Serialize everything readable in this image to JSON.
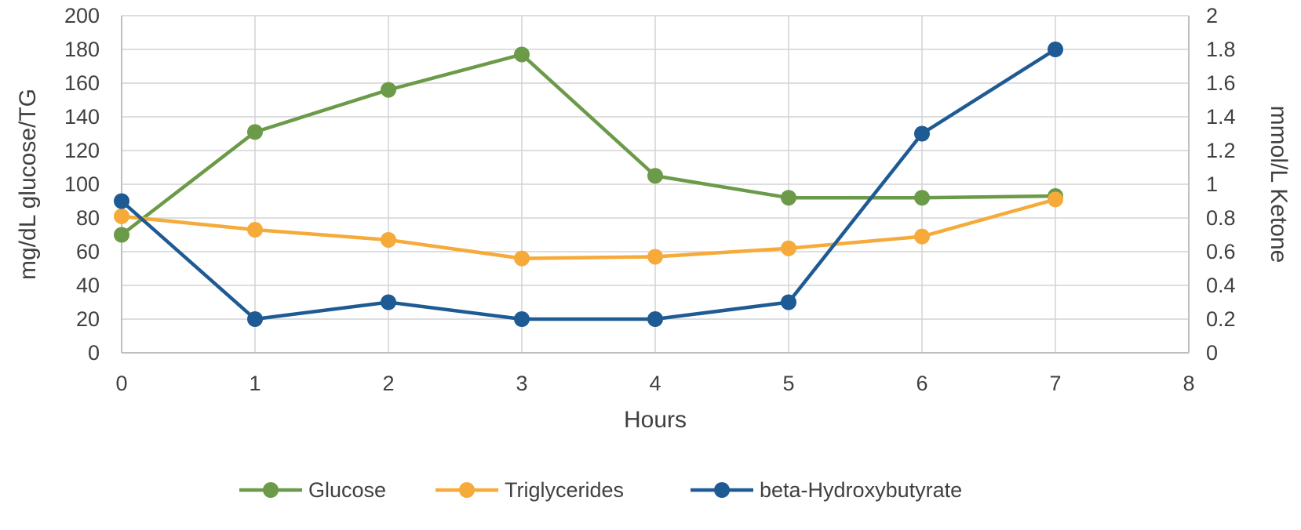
{
  "chart_data": {
    "type": "line",
    "title": "",
    "xlabel": "Hours",
    "ylabel": "mg/dL glucose/TG",
    "y2label": "mmol/L Ketone",
    "xlim": [
      0,
      8
    ],
    "ylim": [
      0,
      200
    ],
    "y2lim": [
      0,
      2
    ],
    "x_ticks": [
      "0",
      "1",
      "2",
      "3",
      "4",
      "5",
      "6",
      "7",
      "8"
    ],
    "y_ticks": [
      "0",
      "20",
      "40",
      "60",
      "80",
      "100",
      "120",
      "140",
      "160",
      "180",
      "200"
    ],
    "y2_ticks": [
      "0",
      "0.2",
      "0.4",
      "0.6",
      "0.8",
      "1",
      "1.2",
      "1.4",
      "1.6",
      "1.8",
      "2"
    ],
    "grid": true,
    "legend_position": "bottom",
    "x": [
      0,
      1,
      2,
      3,
      4,
      5,
      6,
      7
    ],
    "series": [
      {
        "name": "Glucose",
        "axis": "left",
        "color": "#6b9a48",
        "values": [
          70,
          131,
          156,
          177,
          105,
          92,
          92,
          93
        ]
      },
      {
        "name": "Triglycerides",
        "axis": "left",
        "color": "#f5aa3a",
        "values": [
          81,
          73,
          67,
          56,
          57,
          62,
          69,
          91
        ]
      },
      {
        "name": "beta-Hydroxybutyrate",
        "axis": "right",
        "color": "#1e5a93",
        "values": [
          0.9,
          0.2,
          0.3,
          0.2,
          0.2,
          0.3,
          1.3,
          1.8
        ]
      }
    ]
  }
}
